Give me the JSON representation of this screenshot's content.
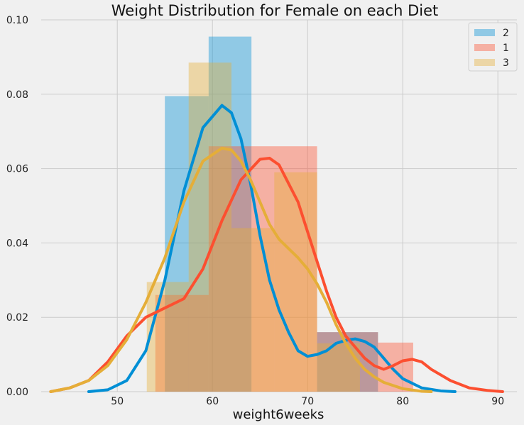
{
  "chart_data": {
    "type": "histogram+kde",
    "title": "Weight Distribution for Female on each Diet",
    "xlabel": "weight6weeks",
    "ylabel": "",
    "xlim": [
      42,
      92
    ],
    "ylim": [
      0,
      0.1
    ],
    "xticks": [
      "50",
      "60",
      "70",
      "80",
      "90"
    ],
    "yticks": [
      "0.00",
      "0.02",
      "0.04",
      "0.06",
      "0.08",
      "0.10"
    ],
    "grid": true,
    "legend_position": "top-right",
    "series": [
      {
        "name": "2",
        "color": "#008fd5",
        "bins": [
          {
            "x0": 55.0,
            "x1": 59.6,
            "height": 0.0795
          },
          {
            "x0": 59.6,
            "x1": 64.1,
            "height": 0.0955
          },
          {
            "x0": 64.1,
            "x1": 71.0,
            "height": 0.0
          },
          {
            "x0": 71.0,
            "x1": 77.4,
            "height": 0.016
          }
        ],
        "kde": [
          [
            47,
            0.0
          ],
          [
            49,
            0.0005
          ],
          [
            51,
            0.003
          ],
          [
            53,
            0.011
          ],
          [
            55,
            0.03
          ],
          [
            57,
            0.054
          ],
          [
            59,
            0.071
          ],
          [
            61,
            0.077
          ],
          [
            62,
            0.075
          ],
          [
            63,
            0.068
          ],
          [
            64,
            0.056
          ],
          [
            65,
            0.042
          ],
          [
            66,
            0.03
          ],
          [
            67,
            0.022
          ],
          [
            68,
            0.016
          ],
          [
            69,
            0.011
          ],
          [
            70,
            0.0095
          ],
          [
            71,
            0.01
          ],
          [
            72,
            0.011
          ],
          [
            73,
            0.013
          ],
          [
            74,
            0.0138
          ],
          [
            75,
            0.0142
          ],
          [
            76,
            0.0135
          ],
          [
            77,
            0.012
          ],
          [
            78,
            0.009
          ],
          [
            79,
            0.006
          ],
          [
            80,
            0.0035
          ],
          [
            82,
            0.001
          ],
          [
            84,
            0.0002
          ],
          [
            85.5,
            0.0
          ]
        ]
      },
      {
        "name": "1",
        "color": "#fc4f30",
        "bins": [
          {
            "x0": 54.0,
            "x1": 59.6,
            "height": 0.026
          },
          {
            "x0": 59.6,
            "x1": 64.1,
            "height": 0.066
          },
          {
            "x0": 64.1,
            "x1": 71.0,
            "height": 0.066
          },
          {
            "x0": 71.0,
            "x1": 77.4,
            "height": 0.016
          },
          {
            "x0": 77.4,
            "x1": 81.1,
            "height": 0.0132
          }
        ],
        "kde": [
          [
            43,
            0.0
          ],
          [
            45,
            0.001
          ],
          [
            47,
            0.003
          ],
          [
            49,
            0.008
          ],
          [
            51,
            0.015
          ],
          [
            53,
            0.02
          ],
          [
            55,
            0.0225
          ],
          [
            57,
            0.025
          ],
          [
            59,
            0.033
          ],
          [
            61,
            0.046
          ],
          [
            63,
            0.057
          ],
          [
            65,
            0.0625
          ],
          [
            66,
            0.0628
          ],
          [
            67,
            0.061
          ],
          [
            69,
            0.051
          ],
          [
            71,
            0.035
          ],
          [
            72,
            0.027
          ],
          [
            73,
            0.02
          ],
          [
            74,
            0.015
          ],
          [
            75,
            0.012
          ],
          [
            76,
            0.009
          ],
          [
            77,
            0.007
          ],
          [
            78,
            0.006
          ],
          [
            79,
            0.007
          ],
          [
            80,
            0.0083
          ],
          [
            81,
            0.0087
          ],
          [
            82,
            0.008
          ],
          [
            83,
            0.006
          ],
          [
            85,
            0.003
          ],
          [
            87,
            0.001
          ],
          [
            89,
            0.0003
          ],
          [
            90.5,
            0.0
          ]
        ]
      },
      {
        "name": "3",
        "color": "#e5ae38",
        "bins": [
          {
            "x0": 53.1,
            "x1": 57.5,
            "height": 0.0295
          },
          {
            "x0": 57.5,
            "x1": 62.0,
            "height": 0.0885
          },
          {
            "x0": 62.0,
            "x1": 66.5,
            "height": 0.044
          },
          {
            "x0": 66.5,
            "x1": 71.0,
            "height": 0.059
          },
          {
            "x0": 71.0,
            "x1": 75.5,
            "height": 0.013
          },
          {
            "x0": 75.5,
            "x1": 77.4,
            "height": 0.0
          }
        ],
        "kde": [
          [
            43,
            0.0
          ],
          [
            45,
            0.001
          ],
          [
            47,
            0.003
          ],
          [
            49,
            0.007
          ],
          [
            51,
            0.014
          ],
          [
            53,
            0.024
          ],
          [
            55,
            0.036
          ],
          [
            57,
            0.051
          ],
          [
            59,
            0.062
          ],
          [
            61,
            0.0655
          ],
          [
            62,
            0.065
          ],
          [
            63,
            0.062
          ],
          [
            64,
            0.057
          ],
          [
            65,
            0.051
          ],
          [
            66,
            0.045
          ],
          [
            67,
            0.041
          ],
          [
            68,
            0.0385
          ],
          [
            69,
            0.036
          ],
          [
            70,
            0.033
          ],
          [
            71,
            0.029
          ],
          [
            72,
            0.024
          ],
          [
            73,
            0.018
          ],
          [
            74,
            0.013
          ],
          [
            75,
            0.009
          ],
          [
            76,
            0.006
          ],
          [
            77,
            0.004
          ],
          [
            78,
            0.0025
          ],
          [
            80,
            0.0008
          ],
          [
            82,
            0.0001
          ],
          [
            83,
            0.0
          ]
        ]
      }
    ]
  }
}
